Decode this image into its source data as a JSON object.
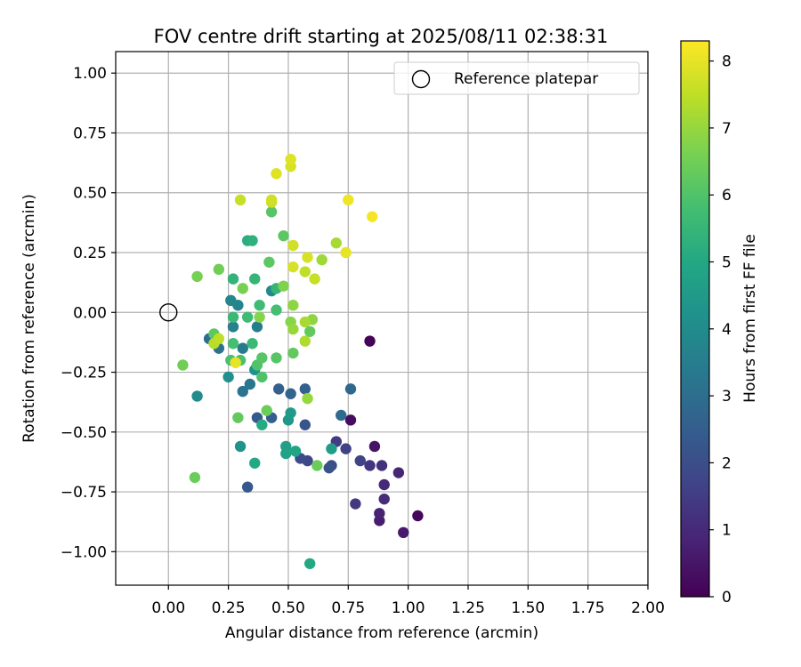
{
  "chart_data": {
    "type": "scatter",
    "title": "FOV centre drift starting at 2025/08/11 02:38:31",
    "xlabel": "Angular distance from reference (arcmin)",
    "ylabel": "Rotation from reference (arcmin)",
    "xlim": [
      -0.22,
      2.0
    ],
    "ylim": [
      -1.14,
      1.09
    ],
    "xticks": [
      0.0,
      0.25,
      0.5,
      0.75,
      1.0,
      1.25,
      1.5,
      1.75,
      2.0
    ],
    "xtick_labels": [
      "0.00",
      "0.25",
      "0.50",
      "0.75",
      "1.00",
      "1.25",
      "1.50",
      "1.75",
      "2.00"
    ],
    "yticks": [
      -1.0,
      -0.75,
      -0.5,
      -0.25,
      0.0,
      0.25,
      0.5,
      0.75,
      1.0
    ],
    "ytick_labels": [
      "−1.00",
      "−0.75",
      "−0.50",
      "−0.25",
      "0.00",
      "0.25",
      "0.50",
      "0.75",
      "1.00"
    ],
    "grid": true,
    "legend": {
      "position": "top-right",
      "entries": [
        "Reference platepar"
      ]
    },
    "reference_point": {
      "x": 0.0,
      "y": 0.0
    },
    "colorbar": {
      "label": "Hours from first FF file",
      "colormap": "viridis",
      "range": [
        0,
        8.3
      ],
      "ticks": [
        0,
        1,
        2,
        3,
        4,
        5,
        6,
        7,
        8
      ],
      "tick_labels": [
        "0",
        "1",
        "2",
        "3",
        "4",
        "5",
        "6",
        "7",
        "8"
      ]
    },
    "points": [
      {
        "x": 0.84,
        "y": -0.12,
        "hours": 0.05
      },
      {
        "x": 1.04,
        "y": -0.85,
        "hours": 0.15
      },
      {
        "x": 0.76,
        "y": -0.45,
        "hours": 0.3
      },
      {
        "x": 0.86,
        "y": -0.56,
        "hours": 0.5
      },
      {
        "x": 0.98,
        "y": -0.92,
        "hours": 0.6
      },
      {
        "x": 0.88,
        "y": -0.87,
        "hours": 0.7
      },
      {
        "x": 0.88,
        "y": -0.84,
        "hours": 0.8
      },
      {
        "x": 0.96,
        "y": -0.67,
        "hours": 0.9
      },
      {
        "x": 0.9,
        "y": -0.72,
        "hours": 1.0
      },
      {
        "x": 0.9,
        "y": -0.78,
        "hours": 1.1
      },
      {
        "x": 0.89,
        "y": -0.64,
        "hours": 1.2
      },
      {
        "x": 0.84,
        "y": -0.64,
        "hours": 1.3
      },
      {
        "x": 0.78,
        "y": -0.8,
        "hours": 1.4
      },
      {
        "x": 0.7,
        "y": -0.54,
        "hours": 1.5
      },
      {
        "x": 0.74,
        "y": -0.57,
        "hours": 1.6
      },
      {
        "x": 0.8,
        "y": -0.62,
        "hours": 1.7
      },
      {
        "x": 0.58,
        "y": -0.62,
        "hours": 1.8
      },
      {
        "x": 0.55,
        "y": -0.61,
        "hours": 1.9
      },
      {
        "x": 0.68,
        "y": -0.64,
        "hours": 2.0
      },
      {
        "x": 0.67,
        "y": -0.65,
        "hours": 2.1
      },
      {
        "x": 0.57,
        "y": -0.47,
        "hours": 2.2
      },
      {
        "x": 0.33,
        "y": -0.73,
        "hours": 2.3
      },
      {
        "x": 0.37,
        "y": -0.44,
        "hours": 2.4
      },
      {
        "x": 0.43,
        "y": -0.44,
        "hours": 2.5
      },
      {
        "x": 0.46,
        "y": -0.32,
        "hours": 2.6
      },
      {
        "x": 0.57,
        "y": -0.32,
        "hours": 2.6
      },
      {
        "x": 0.51,
        "y": -0.34,
        "hours": 2.7
      },
      {
        "x": 0.76,
        "y": -0.32,
        "hours": 2.8
      },
      {
        "x": 0.72,
        "y": -0.43,
        "hours": 2.9
      },
      {
        "x": 0.17,
        "y": -0.11,
        "hours": 3.0
      },
      {
        "x": 0.21,
        "y": -0.15,
        "hours": 3.1
      },
      {
        "x": 0.31,
        "y": -0.33,
        "hours": 3.2
      },
      {
        "x": 0.34,
        "y": -0.3,
        "hours": 3.3
      },
      {
        "x": 0.31,
        "y": -0.15,
        "hours": 3.4
      },
      {
        "x": 0.37,
        "y": -0.06,
        "hours": 3.5
      },
      {
        "x": 0.27,
        "y": -0.06,
        "hours": 3.6
      },
      {
        "x": 0.29,
        "y": 0.03,
        "hours": 3.7
      },
      {
        "x": 0.26,
        "y": 0.05,
        "hours": 3.8
      },
      {
        "x": 0.43,
        "y": 0.09,
        "hours": 3.9
      },
      {
        "x": 0.12,
        "y": -0.35,
        "hours": 4.0
      },
      {
        "x": 0.25,
        "y": -0.27,
        "hours": 4.1
      },
      {
        "x": 0.36,
        "y": -0.24,
        "hours": 4.2
      },
      {
        "x": 0.3,
        "y": -0.56,
        "hours": 4.3
      },
      {
        "x": 0.5,
        "y": -0.45,
        "hours": 4.4
      },
      {
        "x": 0.51,
        "y": -0.42,
        "hours": 4.5
      },
      {
        "x": 0.68,
        "y": -0.57,
        "hours": 4.6
      },
      {
        "x": 0.49,
        "y": -0.56,
        "hours": 4.7
      },
      {
        "x": 0.49,
        "y": -0.59,
        "hours": 4.8
      },
      {
        "x": 0.53,
        "y": -0.58,
        "hours": 4.9
      },
      {
        "x": 0.36,
        "y": -0.63,
        "hours": 5.0
      },
      {
        "x": 0.39,
        "y": -0.47,
        "hours": 5.1
      },
      {
        "x": 0.59,
        "y": -1.05,
        "hours": 5.0
      },
      {
        "x": 0.33,
        "y": 0.3,
        "hours": 5.2
      },
      {
        "x": 0.35,
        "y": 0.3,
        "hours": 5.3
      },
      {
        "x": 0.27,
        "y": 0.14,
        "hours": 5.4
      },
      {
        "x": 0.36,
        "y": 0.14,
        "hours": 5.5
      },
      {
        "x": 0.45,
        "y": 0.1,
        "hours": 5.5
      },
      {
        "x": 0.35,
        "y": -0.13,
        "hours": 5.6
      },
      {
        "x": 0.27,
        "y": -0.02,
        "hours": 5.6
      },
      {
        "x": 0.33,
        "y": -0.02,
        "hours": 5.7
      },
      {
        "x": 0.38,
        "y": 0.03,
        "hours": 5.7
      },
      {
        "x": 0.45,
        "y": 0.01,
        "hours": 5.8
      },
      {
        "x": 0.27,
        "y": -0.13,
        "hours": 5.8
      },
      {
        "x": 0.3,
        "y": -0.2,
        "hours": 5.9
      },
      {
        "x": 0.26,
        "y": -0.2,
        "hours": 5.9
      },
      {
        "x": 0.37,
        "y": -0.22,
        "hours": 6.0
      },
      {
        "x": 0.39,
        "y": -0.27,
        "hours": 6.0
      },
      {
        "x": 0.39,
        "y": -0.19,
        "hours": 6.1
      },
      {
        "x": 0.45,
        "y": -0.19,
        "hours": 6.1
      },
      {
        "x": 0.43,
        "y": 0.42,
        "hours": 6.1
      },
      {
        "x": 0.48,
        "y": 0.32,
        "hours": 6.2
      },
      {
        "x": 0.42,
        "y": 0.21,
        "hours": 6.2
      },
      {
        "x": 0.19,
        "y": -0.09,
        "hours": 6.2
      },
      {
        "x": 0.52,
        "y": -0.17,
        "hours": 6.3
      },
      {
        "x": 0.59,
        "y": -0.08,
        "hours": 6.3
      },
      {
        "x": 0.29,
        "y": -0.44,
        "hours": 6.3
      },
      {
        "x": 0.41,
        "y": -0.41,
        "hours": 6.4
      },
      {
        "x": 0.62,
        "y": -0.64,
        "hours": 6.4
      },
      {
        "x": 0.11,
        "y": -0.69,
        "hours": 6.4
      },
      {
        "x": 0.06,
        "y": -0.22,
        "hours": 6.5
      },
      {
        "x": 0.21,
        "y": 0.18,
        "hours": 6.5
      },
      {
        "x": 0.12,
        "y": 0.15,
        "hours": 6.6
      },
      {
        "x": 0.31,
        "y": 0.1,
        "hours": 6.6
      },
      {
        "x": 0.48,
        "y": 0.11,
        "hours": 6.7
      },
      {
        "x": 0.38,
        "y": -0.02,
        "hours": 6.8
      },
      {
        "x": 0.51,
        "y": -0.04,
        "hours": 6.8
      },
      {
        "x": 0.52,
        "y": 0.03,
        "hours": 6.9
      },
      {
        "x": 0.6,
        "y": -0.03,
        "hours": 6.9
      },
      {
        "x": 0.58,
        "y": -0.36,
        "hours": 7.0
      },
      {
        "x": 0.52,
        "y": -0.07,
        "hours": 7.0
      },
      {
        "x": 0.64,
        "y": 0.22,
        "hours": 7.1
      },
      {
        "x": 0.7,
        "y": 0.29,
        "hours": 7.2
      },
      {
        "x": 0.57,
        "y": -0.04,
        "hours": 7.2
      },
      {
        "x": 0.57,
        "y": -0.12,
        "hours": 7.3
      },
      {
        "x": 0.19,
        "y": -0.13,
        "hours": 7.4
      },
      {
        "x": 0.21,
        "y": -0.11,
        "hours": 7.5
      },
      {
        "x": 0.57,
        "y": 0.17,
        "hours": 7.5
      },
      {
        "x": 0.61,
        "y": 0.14,
        "hours": 7.6
      },
      {
        "x": 0.3,
        "y": 0.47,
        "hours": 7.6
      },
      {
        "x": 0.43,
        "y": 0.46,
        "hours": 7.6
      },
      {
        "x": 0.43,
        "y": 0.47,
        "hours": 7.7
      },
      {
        "x": 0.52,
        "y": 0.28,
        "hours": 7.7
      },
      {
        "x": 0.58,
        "y": 0.23,
        "hours": 7.8
      },
      {
        "x": 0.52,
        "y": 0.19,
        "hours": 7.8
      },
      {
        "x": 0.51,
        "y": 0.61,
        "hours": 7.8
      },
      {
        "x": 0.51,
        "y": 0.64,
        "hours": 7.9
      },
      {
        "x": 0.45,
        "y": 0.58,
        "hours": 7.9
      },
      {
        "x": 0.74,
        "y": 0.25,
        "hours": 8.0
      },
      {
        "x": 0.75,
        "y": 0.47,
        "hours": 8.1
      },
      {
        "x": 0.85,
        "y": 0.4,
        "hours": 8.2
      },
      {
        "x": 0.28,
        "y": -0.21,
        "hours": 8.0
      }
    ]
  }
}
